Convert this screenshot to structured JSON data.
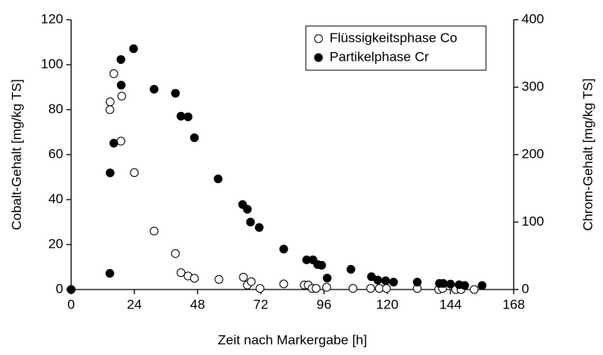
{
  "chart_data": {
    "type": "scatter",
    "xlabel": "Zeit nach Markergabe [h]",
    "ylabel": "Cobalt-Gehalt [mg/kg TS]",
    "y2label": "Chrom-Gehalt [mg/kg TS]",
    "xlim": [
      0,
      168
    ],
    "xticks": [
      0,
      24,
      48,
      72,
      96,
      120,
      144,
      168
    ],
    "ylim": [
      0,
      120
    ],
    "yticks": [
      0,
      20,
      40,
      60,
      80,
      100,
      120
    ],
    "y2lim": [
      0,
      400
    ],
    "y2ticks": [
      0,
      100,
      200,
      300,
      400
    ],
    "legend": "upper right",
    "series": [
      {
        "name": "Flüssigkeitsphase Co",
        "color": "#000000",
        "filled": false,
        "x": [
          0,
          14.7,
          14.8,
          16.2,
          19.2,
          18.9,
          24,
          31.5,
          39.6,
          41.7,
          44.4,
          46.8,
          56.1,
          65.4,
          66.9,
          68.4,
          71.7,
          80.7,
          88.5,
          90,
          91.5,
          93,
          97,
          107,
          113.7,
          117,
          119.7,
          131.4,
          139.5,
          141,
          146,
          148,
          153
        ],
        "values": [
          0,
          80,
          83.5,
          96,
          86,
          66,
          52,
          26,
          16,
          7.5,
          6,
          5,
          4.5,
          5.5,
          2,
          3.5,
          0.5,
          2.5,
          2,
          2,
          0.5,
          0.5,
          1,
          0.5,
          0.5,
          0.5,
          0.5,
          0.5,
          0,
          0.5,
          0,
          0,
          0
        ]
      },
      {
        "name": "Partikelphase Cr",
        "color": "#000000",
        "filled": true,
        "axis": "y2",
        "x": [
          0,
          14.7,
          14.8,
          16.2,
          18.9,
          19,
          23.7,
          31.5,
          39.6,
          41.7,
          44.4,
          46.8,
          55.8,
          65.1,
          66.9,
          68.1,
          71.4,
          80.7,
          89.4,
          91.8,
          93.6,
          95.1,
          97.2,
          106.2,
          114,
          116.4,
          119.4,
          122.4,
          131.4,
          139.8,
          141.3,
          144,
          147.3,
          149.4,
          156
        ],
        "values": [
          0,
          24,
          173,
          217,
          341,
          303,
          357,
          297,
          291,
          257,
          256,
          225,
          164,
          126,
          119,
          100,
          92,
          60,
          44,
          44,
          37,
          36,
          17,
          30,
          19,
          14,
          13,
          11,
          11,
          9,
          9,
          8,
          7,
          6,
          6
        ]
      }
    ]
  }
}
